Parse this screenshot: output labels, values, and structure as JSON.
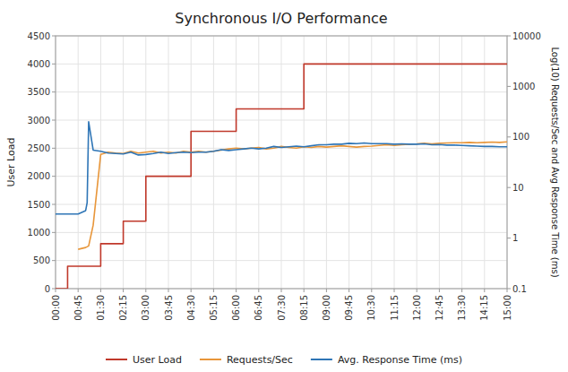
{
  "chart_data": {
    "type": "line",
    "title": "Synchronous I/O Performance",
    "ylabel": "User Load",
    "y2label": "Log(10) Requests/Sec and Avg Response Time (ms)",
    "xlim": [
      0,
      15
    ],
    "xticks": [
      {
        "value": 0,
        "label": "00:00"
      },
      {
        "value": 0.75,
        "label": "00:45"
      },
      {
        "value": 1.5,
        "label": "01:30"
      },
      {
        "value": 2.25,
        "label": "02:15"
      },
      {
        "value": 3.0,
        "label": "03:00"
      },
      {
        "value": 3.75,
        "label": "03:45"
      },
      {
        "value": 4.5,
        "label": "04:30"
      },
      {
        "value": 5.25,
        "label": "05:15"
      },
      {
        "value": 6.0,
        "label": "06:00"
      },
      {
        "value": 6.75,
        "label": "06:45"
      },
      {
        "value": 7.5,
        "label": "07:30"
      },
      {
        "value": 8.25,
        "label": "08:15"
      },
      {
        "value": 9.0,
        "label": "09:00"
      },
      {
        "value": 9.75,
        "label": "09:45"
      },
      {
        "value": 10.5,
        "label": "10:30"
      },
      {
        "value": 11.25,
        "label": "11:15"
      },
      {
        "value": 12.0,
        "label": "12:00"
      },
      {
        "value": 12.75,
        "label": "12:45"
      },
      {
        "value": 13.5,
        "label": "13:30"
      },
      {
        "value": 14.25,
        "label": "14:15"
      },
      {
        "value": 15.0,
        "label": "15:00"
      }
    ],
    "ylim": [
      0,
      4500
    ],
    "yticks": [
      0,
      500,
      1000,
      1500,
      2000,
      2500,
      3000,
      3500,
      4000,
      4500
    ],
    "y2lim": [
      0.1,
      10000
    ],
    "y2ticks": [
      0.1,
      1,
      10,
      100,
      1000,
      10000
    ],
    "log": "y2",
    "grid": true,
    "legend": "bottom",
    "series": [
      {
        "name": "User Load",
        "color": "#C0392B",
        "x": [
          0,
          0.4,
          0.4,
          1.5,
          1.5,
          2.25,
          2.25,
          3.0,
          3.0,
          4.5,
          4.5,
          6.0,
          6.0,
          7.5,
          7.5,
          8.25,
          8.25,
          9.75,
          9.75,
          15.0
        ],
        "values": [
          0,
          0,
          400,
          400,
          800,
          800,
          1200,
          1200,
          2000,
          2000,
          2800,
          2800,
          3200,
          3200,
          3200,
          3200,
          4000,
          4000,
          4000,
          4000
        ]
      },
      {
        "name": "Requests/Sec",
        "color": "#E8963A",
        "axis": "y2",
        "x": [
          0.75,
          1.0,
          1.1,
          1.25,
          1.5,
          1.75,
          2.0,
          2.25,
          2.5,
          2.75,
          3.0,
          3.25,
          3.5,
          3.75,
          4.0,
          4.25,
          4.5,
          4.75,
          5.0,
          5.25,
          5.5,
          5.75,
          6.0,
          6.25,
          6.5,
          6.75,
          7.0,
          7.25,
          7.5,
          7.75,
          8.0,
          8.25,
          8.5,
          8.75,
          9.0,
          9.25,
          9.5,
          9.75,
          10.0,
          10.25,
          10.5,
          10.75,
          11.0,
          11.25,
          11.5,
          11.75,
          12.0,
          12.25,
          12.5,
          12.75,
          13.0,
          13.25,
          13.5,
          13.75,
          14.0,
          14.25,
          14.5,
          14.75,
          15.0
        ],
        "values": [
          0.6,
          0.65,
          0.7,
          1.8,
          45,
          50,
          48,
          47,
          52,
          48,
          50,
          52,
          48,
          50,
          48,
          52,
          50,
          52,
          50,
          52,
          55,
          58,
          60,
          58,
          60,
          62,
          58,
          60,
          65,
          62,
          60,
          64,
          62,
          65,
          63,
          65,
          67,
          65,
          63,
          65,
          66,
          68,
          70,
          68,
          70,
          72,
          73,
          75,
          73,
          75,
          76,
          77,
          77,
          78,
          77,
          78,
          79,
          78,
          80
        ]
      },
      {
        "name": "Avg. Response Time (ms)",
        "color": "#2E75B6",
        "axis": "y2",
        "x": [
          0.0,
          0.25,
          0.5,
          0.75,
          1.0,
          1.05,
          1.1,
          1.25,
          1.5,
          1.75,
          2.0,
          2.25,
          2.5,
          2.75,
          3.0,
          3.25,
          3.5,
          3.75,
          4.0,
          4.25,
          4.5,
          4.75,
          5.0,
          5.25,
          5.5,
          5.75,
          6.0,
          6.25,
          6.5,
          6.75,
          7.0,
          7.25,
          7.5,
          7.75,
          8.0,
          8.25,
          8.5,
          8.75,
          9.0,
          9.25,
          9.5,
          9.75,
          10.0,
          10.25,
          10.5,
          10.75,
          11.0,
          11.25,
          11.5,
          11.75,
          12.0,
          12.25,
          12.5,
          12.75,
          13.0,
          13.25,
          13.5,
          13.75,
          14.0,
          14.25,
          14.5,
          14.75,
          15.0
        ],
        "values": [
          3,
          3,
          3,
          3,
          3.5,
          5,
          200,
          55,
          52,
          48,
          47,
          46,
          50,
          44,
          45,
          47,
          50,
          47,
          49,
          50,
          49,
          50,
          50,
          52,
          56,
          54,
          56,
          58,
          60,
          58,
          60,
          65,
          62,
          64,
          66,
          64,
          67,
          70,
          70,
          72,
          72,
          75,
          74,
          76,
          74,
          74,
          74,
          72,
          73,
          72,
          72,
          73,
          70,
          71,
          69,
          69,
          68,
          67,
          66,
          65,
          65,
          64,
          64
        ]
      }
    ]
  }
}
